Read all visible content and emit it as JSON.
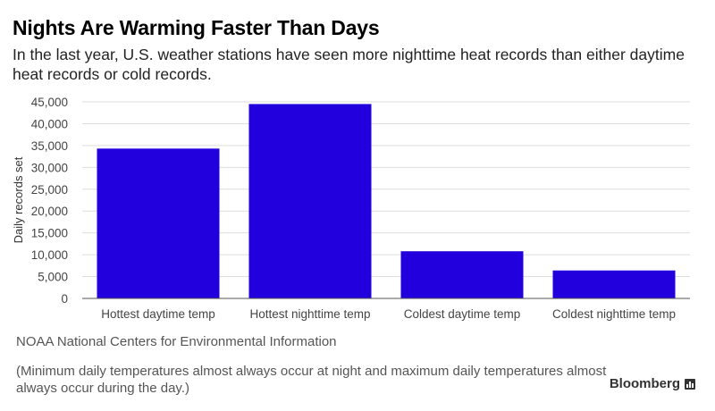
{
  "title": "Nights Are Warming Faster Than Days",
  "subtitle": "In the last year, U.S. weather stations have seen more nighttime heat records than either daytime heat records or cold records.",
  "source": "NOAA National Centers for Environmental Information",
  "note": "(Minimum daily temperatures almost always occur at night and maximum daily temperatures almost always occur during the day.)",
  "brand": "Bloomberg",
  "chart_data": {
    "type": "bar",
    "categories": [
      "Hottest daytime temp",
      "Hottest nighttime temp",
      "Coldest daytime temp",
      "Coldest nighttime temp"
    ],
    "values": [
      34300,
      44500,
      10800,
      6400
    ],
    "ylabel": "Daily records set",
    "ylim": [
      0,
      45000
    ],
    "yticks": [
      0,
      5000,
      10000,
      15000,
      20000,
      25000,
      30000,
      35000,
      40000,
      45000
    ],
    "ytick_labels": [
      "0",
      "5,000",
      "10,000",
      "15,000",
      "20,000",
      "25,000",
      "30,000",
      "35,000",
      "40,000",
      "45,000"
    ],
    "bar_color": "#2200dd",
    "grid": true
  }
}
